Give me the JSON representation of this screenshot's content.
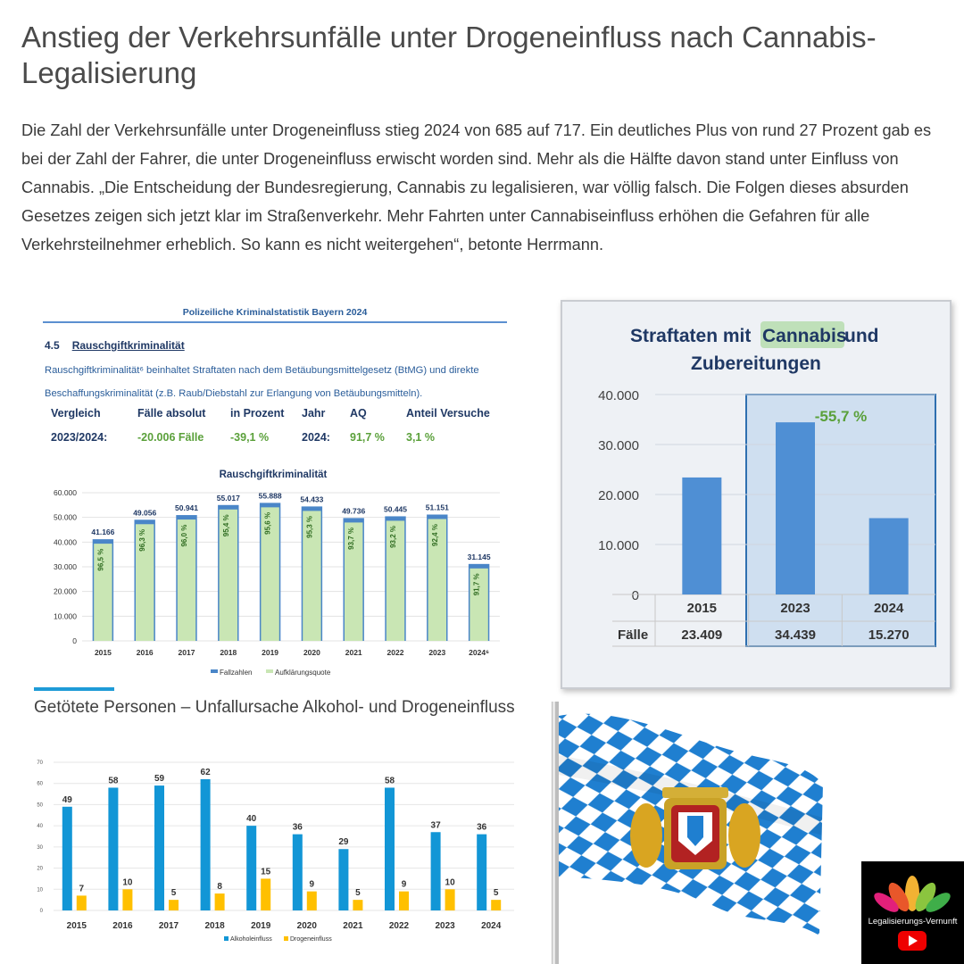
{
  "headline": "Anstieg der Verkehrsunfälle unter Drogeneinfluss nach Cannabis-Legalisierung",
  "article": "Die Zahl der Verkehrsunfälle unter Drogeneinfluss stieg 2024 von 685 auf 717. Ein deutliches Plus von rund 27 Prozent gab es bei der Zahl der Fahrer, die unter Drogeneinfluss erwischt worden sind. Mehr als die Hälfte davon stand unter Einfluss von Cannabis. „Die Entscheidung der Bundesregierung, Cannabis zu legalisieren, war völlig falsch. Die Folgen dieses absurden Gesetzes zeigen sich jetzt klar im Straßenverkehr. Mehr Fahrten unter Cannabiseinfluss erhöhen die Gefahren für alle Verkehrsteilnehmer erheblich. So kann es nicht weitergehen“, betonte Herrmann.",
  "pks": {
    "header": "Polizeiliche Kriminalstatistik Bayern 2024",
    "section_number": "4.5",
    "section_title": "Rauschgiftkriminalität",
    "description": "Rauschgiftkriminalität⁶ beinhaltet Straftaten nach dem Betäubungsmittelgesetz (BtMG) und direkte Beschaffungskriminalität (z.B. Raub/Diebstahl zur Erlangung von Betäubungsmitteln).",
    "comparison": {
      "headers": [
        "Vergleich",
        "Fälle absolut",
        "in Prozent",
        "Jahr",
        "AQ",
        "Anteil Versuche"
      ],
      "values": [
        "2023/2024:",
        "-20.006 Fälle",
        "-39,1 %",
        "2024:",
        "91,7 %",
        "3,1 %"
      ]
    }
  },
  "colors": {
    "accent_blue": "#4a86c8",
    "bar_green": "#c9e6b4",
    "green_text": "#5aa03a",
    "navy": "#1f3864",
    "alc_blue": "#1296d6",
    "drug_yellow": "#ffc000"
  },
  "chart_data": [
    {
      "type": "bar",
      "title": "Rauschgiftkriminalität",
      "categories": [
        "2015",
        "2016",
        "2017",
        "2018",
        "2019",
        "2020",
        "2021",
        "2022",
        "2023",
        "2024⁶"
      ],
      "series": [
        {
          "name": "Fallzahlen",
          "values": [
            41166,
            49056,
            50941,
            55017,
            55888,
            54433,
            49736,
            50445,
            51151,
            31145
          ],
          "labels": [
            "41.166",
            "49.056",
            "50.941",
            "55.017",
            "55.888",
            "54.433",
            "49.736",
            "50.445",
            "51.151",
            "31.145"
          ]
        },
        {
          "name": "Aufklärungsquote",
          "values": [
            96.5,
            96.3,
            96.0,
            95.4,
            95.6,
            95.3,
            93.7,
            93.2,
            92.4,
            91.7
          ],
          "labels": [
            "96,5 %",
            "96,3 %",
            "96,0 %",
            "95,4 %",
            "95,6 %",
            "95,3 %",
            "93,7 %",
            "93,2 %",
            "92,4 %",
            "91,7 %"
          ]
        }
      ],
      "yticks": [
        "0",
        "10.000",
        "20.000",
        "30.000",
        "40.000",
        "50.000",
        "60.000"
      ],
      "ylim": [
        0,
        60000
      ]
    },
    {
      "type": "bar",
      "title": "Straftaten mit Cannabis und Zubereitungen",
      "title_parts": [
        "Straftaten mit ",
        "Cannabis",
        " und",
        "Zubereitungen"
      ],
      "categories": [
        "2015",
        "2023",
        "2024"
      ],
      "series": [
        {
          "name": "Fälle",
          "values": [
            23409,
            34439,
            15270
          ],
          "labels": [
            "23.409",
            "34.439",
            "15.270"
          ]
        }
      ],
      "row_label": "Fälle",
      "annotation": "-55,7 %",
      "yticks": [
        "0",
        "10.000",
        "20.000",
        "30.000",
        "40.000"
      ],
      "ylim": [
        0,
        40000
      ]
    },
    {
      "type": "bar",
      "title": "Getötete Personen – Unfallursache Alkohol- und Drogeneinfluss",
      "categories": [
        "2015",
        "2016",
        "2017",
        "2018",
        "2019",
        "2020",
        "2021",
        "2022",
        "2023",
        "2024"
      ],
      "series": [
        {
          "name": "Alkoholeinfluss",
          "values": [
            49,
            58,
            59,
            62,
            40,
            36,
            29,
            58,
            37,
            36
          ]
        },
        {
          "name": "Drogeneinfluss",
          "values": [
            7,
            10,
            5,
            8,
            15,
            9,
            5,
            9,
            10,
            5
          ]
        }
      ],
      "yticks": [
        "0",
        "10",
        "20",
        "30",
        "40",
        "50",
        "60",
        "70"
      ],
      "ylim": [
        0,
        70
      ]
    }
  ],
  "logo": {
    "text": "Legalisierungs-Vernunft"
  }
}
